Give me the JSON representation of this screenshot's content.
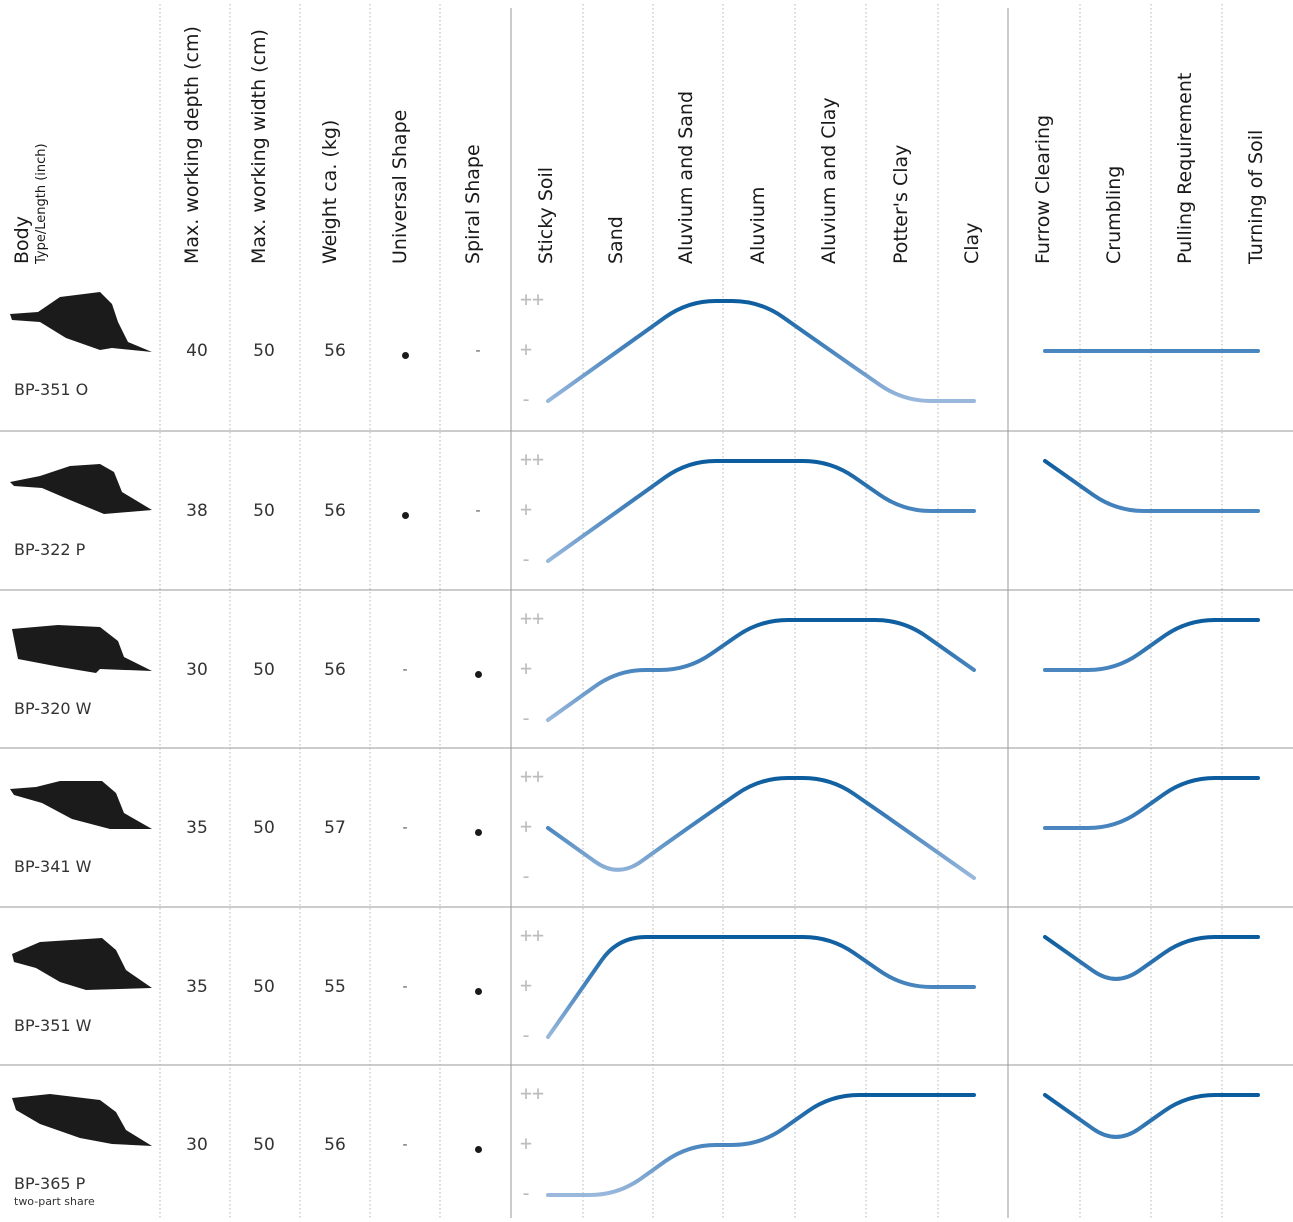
{
  "colors": {
    "curve_high": "#0b5c9e",
    "curve_mid": "#4a86bf",
    "curve_low": "#9ab8dc",
    "grid_dotted": "#b5b5b5",
    "row_divider": "#9a9a9a",
    "scale_symbol": "#bdbdbd"
  },
  "headers": {
    "body": "Body",
    "body_sub": "Type/Length (inch)",
    "specs": [
      "Max. working depth (cm)",
      "Max. working width (cm)",
      "Weight ca. (kg)",
      "Universal Shape",
      "Spiral Shape"
    ],
    "soils": [
      "Sticky Soil",
      "Sand",
      "Aluvium and Sand",
      "Aluvium",
      "Aluvium and Clay",
      "Potter's Clay",
      "Clay"
    ],
    "properties": [
      "Furrow Clearing",
      "Crumbling",
      "Pulling Requirement",
      "Turning of Soil"
    ]
  },
  "scale_symbols": [
    "++",
    "+",
    "-"
  ],
  "chart_data": {
    "type": "line",
    "title": "",
    "level_scale": {
      "1": "-",
      "2": "+",
      "3": "++"
    },
    "rows": [
      {
        "model": "BP-351 O",
        "sub": "",
        "depth": "40",
        "width": "50",
        "weight": "56",
        "universal": "•",
        "spiral": "-",
        "soil_levels": [
          1,
          2,
          3,
          3,
          2,
          1,
          1
        ],
        "property_levels": [
          2,
          2,
          2,
          2
        ]
      },
      {
        "model": "BP-322 P",
        "sub": "",
        "depth": "38",
        "width": "50",
        "weight": "56",
        "universal": "•",
        "spiral": "-",
        "soil_levels": [
          1,
          2,
          3,
          3,
          3,
          2,
          2
        ],
        "property_levels": [
          3,
          2,
          2,
          2
        ]
      },
      {
        "model": "BP-320 W",
        "sub": "",
        "depth": "30",
        "width": "50",
        "weight": "56",
        "universal": "-",
        "spiral": "•",
        "soil_levels": [
          1,
          2,
          2,
          3,
          3,
          3,
          2
        ],
        "property_levels": [
          2,
          2,
          3,
          3
        ]
      },
      {
        "model": "BP-341 W",
        "sub": "",
        "depth": "35",
        "width": "50",
        "weight": "57",
        "universal": "-",
        "spiral": "•",
        "soil_levels": [
          2,
          1,
          2,
          3,
          3,
          2,
          1
        ],
        "property_levels": [
          2,
          2,
          3,
          3
        ]
      },
      {
        "model": "BP-351 W",
        "sub": "",
        "depth": "35",
        "width": "50",
        "weight": "55",
        "universal": "-",
        "spiral": "•",
        "soil_levels": [
          1,
          3,
          3,
          3,
          3,
          2,
          2
        ],
        "property_levels": [
          3,
          2,
          3,
          3
        ]
      },
      {
        "model": "BP-365 P",
        "sub": "two-part share",
        "depth": "30",
        "width": "50",
        "weight": "56",
        "universal": "-",
        "spiral": "•",
        "soil_levels": [
          1,
          1,
          2,
          2,
          3,
          3,
          3
        ],
        "property_levels": [
          3,
          2,
          3,
          3
        ]
      }
    ]
  }
}
